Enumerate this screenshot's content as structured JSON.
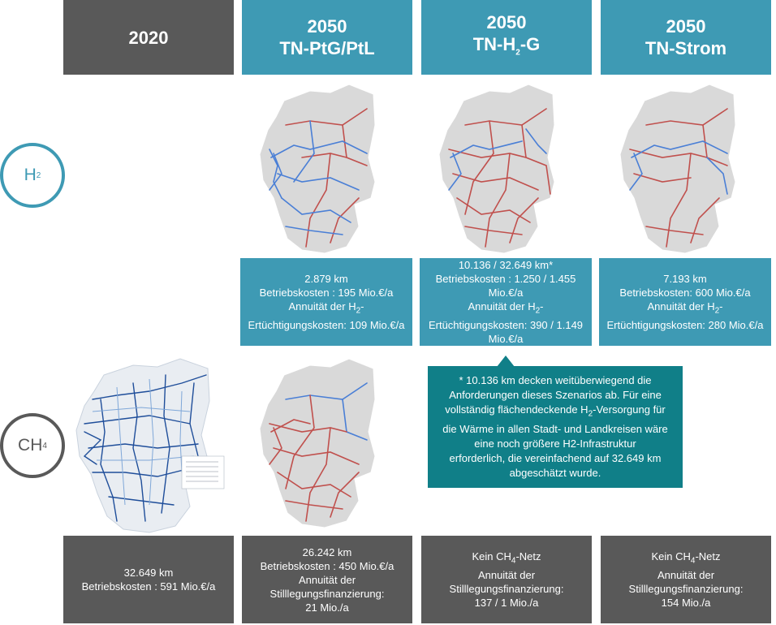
{
  "headers": {
    "col1": {
      "line1": "2020"
    },
    "col2": {
      "line1": "2050",
      "line2": "TN-PtG/PtL"
    },
    "col3": {
      "line1": "2050",
      "line2_prefix": "TN-H",
      "line2_sub": "2",
      "line2_suffix": "-G"
    },
    "col4": {
      "line1": "2050",
      "line2": "TN-Strom"
    }
  },
  "rows": {
    "h2": {
      "prefix": "H",
      "sub": "2"
    },
    "ch4": {
      "prefix": "CH",
      "sub": "4"
    }
  },
  "h2_info": {
    "ptg": {
      "length": "2.879 km",
      "betrieb": "Betriebskosten : 195 Mio.€/a",
      "annuitaet_prefix": "Annuität der H",
      "annuitaet_sub": "2",
      "annuitaet_suffix": "-",
      "ertuecht": "Ertüchtigungskosten: 109 Mio.€/a"
    },
    "h2g": {
      "length": "10.136 / 32.649 km*",
      "betrieb_1": "Betriebskosten : 1.250 / 1.455",
      "betrieb_2": "Mio.€/a",
      "annuitaet_prefix": "Annuität der H",
      "annuitaet_sub": "2",
      "annuitaet_suffix": "-",
      "ertuecht_1": "Ertüchtigungskosten: 390 / 1.149",
      "ertuecht_2": "Mio.€/a"
    },
    "strom": {
      "length": "7.193 km",
      "betrieb": "Betriebskosten: 600 Mio.€/a",
      "annuitaet_prefix": "Annuität der H",
      "annuitaet_sub": "2",
      "annuitaet_suffix": "-",
      "ertuecht": "Ertüchtigungskosten: 280 Mio.€/a"
    }
  },
  "note": {
    "l1": "* 10.136 km decken weitüberwiegend die",
    "l2": "Anforderungen dieses Szenarios ab. Für eine",
    "l3_prefix": "vollständig flächendeckende H",
    "l3_sub": "2",
    "l3_suffix": "-Versorgung für",
    "l4": "die Wärme in allen Stadt- und Landkreisen wäre",
    "l5": "eine noch größere H2-Infrastruktur",
    "l6": "erforderlich, die vereinfachend auf 32.649 km",
    "l7": "abgeschätzt wurde."
  },
  "ch4_info": {
    "y2020": {
      "length": "32.649 km",
      "betrieb": "Betriebskosten : 591 Mio.€/a"
    },
    "ptg": {
      "length": "26.242 km",
      "betrieb": "Betriebskosten : 450 Mio.€/a",
      "annuitaet": "Annuität der",
      "stilllegung": "Stilllegungsfinanzierung:",
      "value": "21 Mio./a"
    },
    "h2g": {
      "kein_prefix": "Kein CH",
      "kein_sub": "4",
      "kein_suffix": "-Netz",
      "annuitaet": "Annuität der",
      "stilllegung": "Stilllegungsfinanzierung:",
      "value": "137 / 1 Mio./a"
    },
    "strom": {
      "kein_prefix": "Kein CH",
      "kein_sub": "4",
      "kein_suffix": "-Netz",
      "annuitaet": "Annuität der",
      "stilllegung": "Stilllegungsfinanzierung:",
      "value": "154 Mio./a"
    }
  },
  "colors": {
    "teal": "#3e9ab4",
    "gray": "#595959",
    "note": "#107f88",
    "map_land": "#d9d9d9",
    "h2_line_red": "#c0504d",
    "h2_line_blue": "#4a7fd6",
    "ch4_line_blue": "#1f4e9a"
  }
}
